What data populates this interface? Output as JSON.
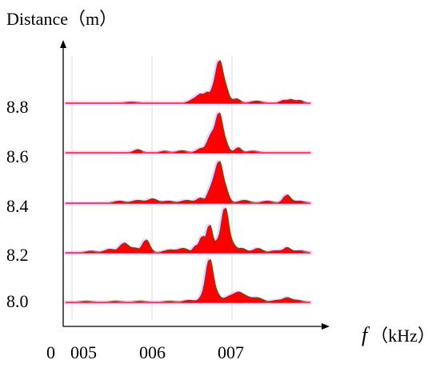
{
  "chart_data": {
    "type": "area",
    "title": "",
    "ylabel": "Distance（m）",
    "xlabel_symbol": "f",
    "xlabel_unit": "（kHz）",
    "x_tick_labels": [
      "0",
      "005",
      "006",
      "007"
    ],
    "grid": true,
    "colors": {
      "spectrum_fill": "#ff0000",
      "baseline": "#e00000",
      "shadow": "#6b4a14",
      "halo": "#ff66ff",
      "grid": "#dddddd",
      "axis": "#000000"
    },
    "series": [
      {
        "name": "8.8",
        "distance": 8.8,
        "peaks": [
          [
            0.265,
            0.01,
            0.022
          ],
          [
            0.52,
            0.05,
            0.016
          ],
          [
            0.545,
            0.09,
            0.012
          ],
          [
            0.572,
            0.12,
            0.012
          ],
          [
            0.603,
            0.18,
            0.013
          ],
          [
            0.625,
            0.47,
            0.012
          ],
          [
            0.648,
            0.2,
            0.013
          ],
          [
            0.693,
            0.05,
            0.014
          ],
          [
            0.775,
            0.02,
            0.02
          ],
          [
            0.885,
            0.03,
            0.012
          ],
          [
            0.915,
            0.04,
            0.012
          ],
          [
            0.95,
            0.03,
            0.014
          ]
        ]
      },
      {
        "name": "8.6",
        "distance": 8.6,
        "peaks": [
          [
            0.29,
            0.035,
            0.014
          ],
          [
            0.4,
            0.015,
            0.015
          ],
          [
            0.47,
            0.02,
            0.018
          ],
          [
            0.548,
            0.05,
            0.015
          ],
          [
            0.58,
            0.1,
            0.012
          ],
          [
            0.598,
            0.2,
            0.012
          ],
          [
            0.623,
            0.46,
            0.012
          ],
          [
            0.645,
            0.15,
            0.013
          ],
          [
            0.7,
            0.06,
            0.012
          ],
          [
            0.76,
            0.015,
            0.02
          ]
        ]
      },
      {
        "name": "8.4",
        "distance": 8.4,
        "peaks": [
          [
            0.215,
            0.02,
            0.02
          ],
          [
            0.29,
            0.03,
            0.02
          ],
          [
            0.35,
            0.05,
            0.018
          ],
          [
            0.415,
            0.02,
            0.02
          ],
          [
            0.49,
            0.03,
            0.02
          ],
          [
            0.545,
            0.06,
            0.014
          ],
          [
            0.585,
            0.12,
            0.012
          ],
          [
            0.605,
            0.22,
            0.012
          ],
          [
            0.625,
            0.45,
            0.012
          ],
          [
            0.648,
            0.18,
            0.013
          ],
          [
            0.725,
            0.03,
            0.02
          ],
          [
            0.82,
            0.02,
            0.02
          ],
          [
            0.9,
            0.1,
            0.014
          ],
          [
            0.95,
            0.02,
            0.02
          ]
        ]
      },
      {
        "name": "8.2",
        "distance": 8.2,
        "peaks": [
          [
            0.1,
            0.015,
            0.02
          ],
          [
            0.175,
            0.04,
            0.018
          ],
          [
            0.235,
            0.12,
            0.018
          ],
          [
            0.28,
            0.05,
            0.016
          ],
          [
            0.325,
            0.16,
            0.014
          ],
          [
            0.42,
            0.03,
            0.02
          ],
          [
            0.475,
            0.05,
            0.02
          ],
          [
            0.528,
            0.08,
            0.01
          ],
          [
            0.555,
            0.2,
            0.011
          ],
          [
            0.585,
            0.35,
            0.011
          ],
          [
            0.615,
            0.12,
            0.011
          ],
          [
            0.648,
            0.58,
            0.014
          ],
          [
            0.68,
            0.08,
            0.012
          ],
          [
            0.715,
            0.05,
            0.016
          ],
          [
            0.78,
            0.05,
            0.018
          ],
          [
            0.855,
            0.02,
            0.02
          ],
          [
            0.9,
            0.06,
            0.014
          ],
          [
            0.95,
            0.02,
            0.02
          ]
        ]
      },
      {
        "name": "8.0",
        "distance": 8.0,
        "peaks": [
          [
            0.08,
            0.01,
            0.02
          ],
          [
            0.2,
            0.01,
            0.02
          ],
          [
            0.3,
            0.01,
            0.02
          ],
          [
            0.42,
            0.01,
            0.02
          ],
          [
            0.5,
            0.02,
            0.02
          ],
          [
            0.555,
            0.06,
            0.014
          ],
          [
            0.585,
            0.55,
            0.014
          ],
          [
            0.615,
            0.08,
            0.012
          ],
          [
            0.66,
            0.06,
            0.02
          ],
          [
            0.7,
            0.11,
            0.02
          ],
          [
            0.735,
            0.05,
            0.02
          ],
          [
            0.78,
            0.05,
            0.02
          ],
          [
            0.86,
            0.02,
            0.02
          ],
          [
            0.9,
            0.05,
            0.016
          ],
          [
            0.94,
            0.02,
            0.02
          ]
        ]
      }
    ]
  }
}
